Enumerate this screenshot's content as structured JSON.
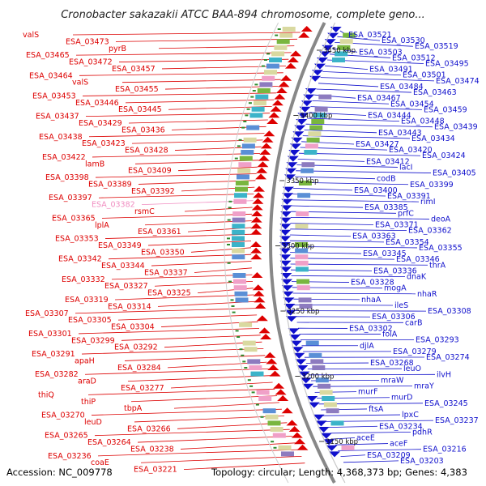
{
  "title": "Cronobacter sakazakii ATCC BAA-894 chromosome, complete geno...",
  "footer": {
    "accession": "Accession: NC_009778",
    "topology": "Topology: circular; Length: 4,368,373 bp; Genes: 4,383"
  },
  "colors": {
    "minus_strand": "#dd0000",
    "plus_strand": "#1010cc",
    "highlight": "#f08cc0",
    "backbone": "#888888"
  },
  "ruler": [
    "3450 kbp",
    "3400 kbp",
    "3350 kbp",
    "3300 kbp",
    "3250 kbp",
    "3200 kbp",
    "3150 kbp"
  ],
  "left_labels": [
    "valS",
    "ESA_03473",
    "pyrB",
    "ESA_03465",
    "ESA_03472",
    "ESA_03457",
    "ESA_03464",
    "valS",
    "ESA_03455",
    "ESA_03453",
    "ESA_03446",
    "ESA_03445",
    "ESA_03437",
    "ESA_03429",
    "ESA_03436",
    "ESA_03438",
    "ESA_03423",
    "ESA_03428",
    "ESA_03422",
    "lamB",
    "ESA_03409",
    "ESA_03398",
    "ESA_03389",
    "ESA_03392",
    "ESA_03397",
    "ESA_03382",
    "rsmC",
    "ESA_03365",
    "lplA",
    "ESA_03361",
    "ESA_03353",
    "ESA_03349",
    "ESA_03350",
    "ESA_03342",
    "ESA_03344",
    "ESA_03337",
    "ESA_03332",
    "ESA_03327",
    "ESA_03325",
    "ESA_03319",
    "ESA_03314",
    "ESA_03307",
    "ESA_03305",
    "ESA_03304",
    "ESA_03301",
    "ESA_03299",
    "ESA_03292",
    "ESA_03291",
    "apaH",
    "ESA_03284",
    "ESA_03282",
    "araD",
    "ESA_03277",
    "thiQ",
    "thiP",
    "tbpA",
    "ESA_03270",
    "leuD",
    "ESA_03266",
    "ESA_03265",
    "ESA_03264",
    "ESA_03238",
    "ESA_03236",
    "coaE",
    "ESA_03221"
  ],
  "right_labels": [
    "ESA_03521",
    "ESA_03530",
    "ESA_03519",
    "ESA_03503",
    "ESA_03512",
    "ESA_03495",
    "ESA_03491",
    "ESA_03501",
    "ESA_03474",
    "ESA_03484",
    "ESA_03463",
    "ESA_03467",
    "ESA_03454",
    "ESA_03459",
    "ESA_03444",
    "ESA_03448",
    "ESA_03439",
    "ESA_03443",
    "ESA_03434",
    "ESA_03427",
    "ESA_03420",
    "ESA_03424",
    "ESA_03412",
    "lacI",
    "ESA_03405",
    "codB",
    "ESA_03399",
    "ESA_03400",
    "ESA_03391",
    "rimI",
    "ESA_03385",
    "prfC",
    "deoA",
    "ESA_03371",
    "ESA_03362",
    "ESA_03363",
    "ESA_03354",
    "ESA_03355",
    "ESA_03345",
    "ESA_03346",
    "thrA",
    "ESA_03336",
    "dnaK",
    "ESA_03328",
    "mogA",
    "nhaR",
    "nhaA",
    "ileS",
    "ESA_03308",
    "ESA_03306",
    "carB",
    "ESA_03302",
    "folA",
    "ESA_03293",
    "djlA",
    "ESA_03279",
    "ESA_03274",
    "ESA_03268",
    "leuO",
    "ilvH",
    "mraW",
    "mraY",
    "murF",
    "murD",
    "ESA_03245",
    "ftsA",
    "lpxC",
    "ESA_03237",
    "ESA_03234",
    "pdhR",
    "aceE",
    "aceF",
    "ESA_03216",
    "ESA_03209",
    "ESA_03203"
  ]
}
